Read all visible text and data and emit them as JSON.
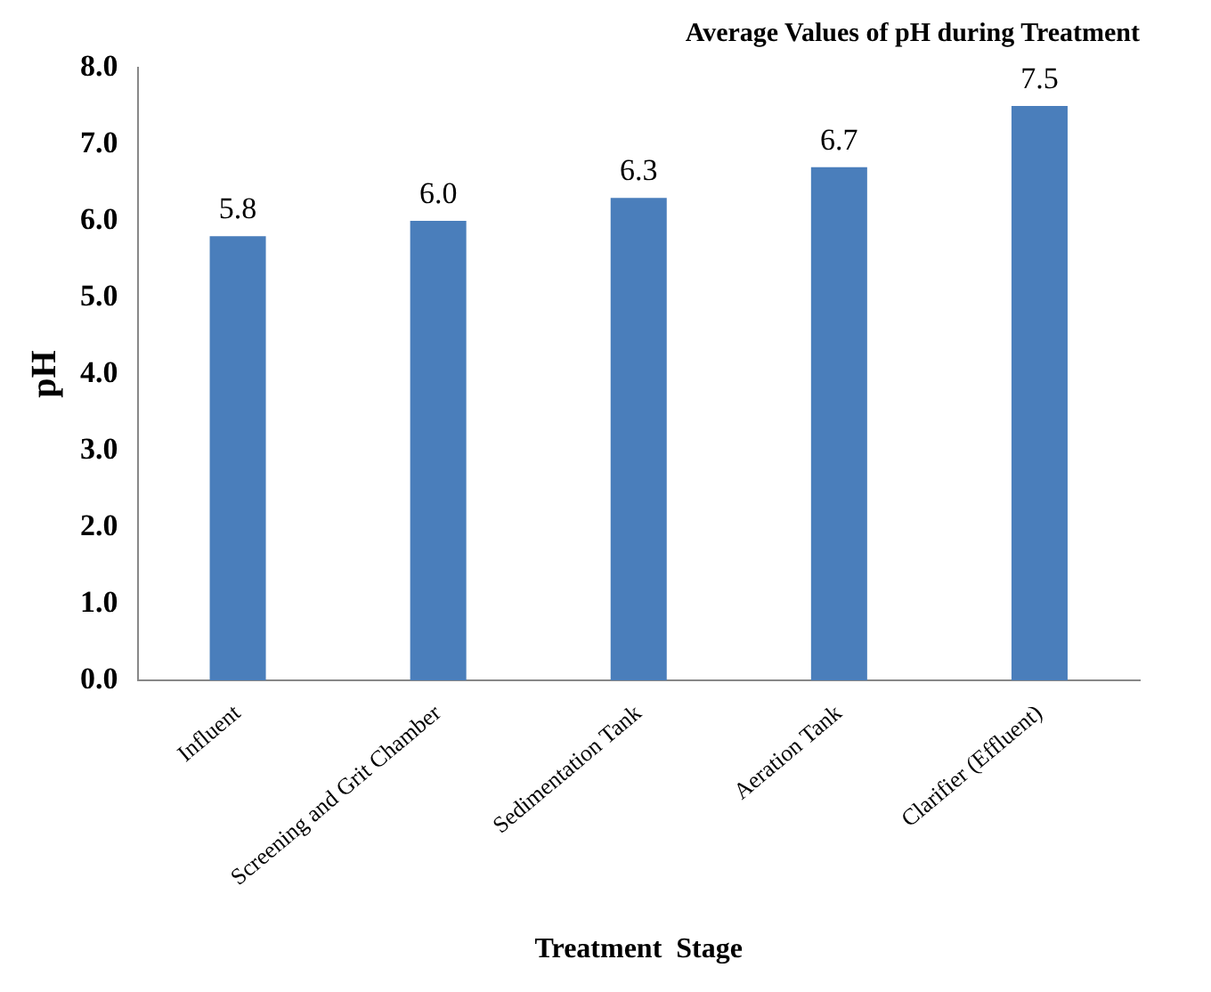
{
  "chart_data": {
    "type": "bar",
    "title": "Average Values of pH during Treatment",
    "xlabel": "Treatment  Stage",
    "ylabel": "pH",
    "categories": [
      "Influent",
      "Screening and Grit Chamber",
      "Sedimentation Tank",
      "Aeration Tank",
      "Clarifier (Effluent)"
    ],
    "values": [
      5.8,
      6.0,
      6.3,
      6.7,
      7.5
    ],
    "value_labels": [
      "5.8",
      "6.0",
      "6.3",
      "6.7",
      "7.5"
    ],
    "color": "#4a7ebb",
    "ylim": [
      0,
      8
    ],
    "yticks": [
      {
        "value": 0,
        "label": "0.0"
      },
      {
        "value": 1,
        "label": "1.0"
      },
      {
        "value": 2,
        "label": "2.0"
      },
      {
        "value": 3,
        "label": "3.0"
      },
      {
        "value": 4,
        "label": "4.0"
      },
      {
        "value": 5,
        "label": "5.0"
      },
      {
        "value": 6,
        "label": "6.0"
      },
      {
        "value": 7,
        "label": "7.0"
      },
      {
        "value": 8,
        "label": "8.0"
      }
    ],
    "grid": false,
    "legend": false
  }
}
